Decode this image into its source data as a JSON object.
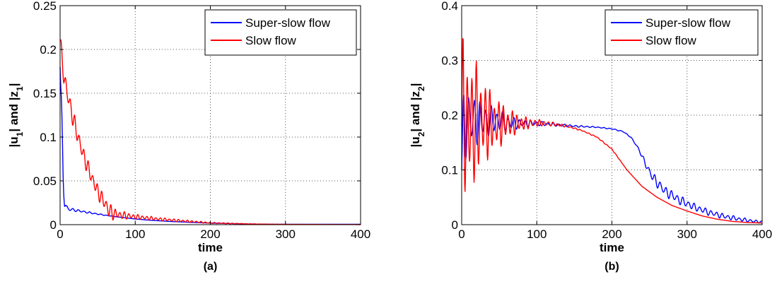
{
  "chart_data": [
    {
      "type": "line",
      "caption": "(a)",
      "xlabel": "time",
      "ylabel_parts": [
        "|u",
        "1",
        "| and |z",
        "1",
        "|"
      ],
      "xlim": [
        0,
        400
      ],
      "ylim": [
        0,
        0.25
      ],
      "xticks": [
        0,
        100,
        200,
        300,
        400
      ],
      "xtick_labels": [
        "0",
        "100",
        "200",
        "300",
        "400"
      ],
      "yticks": [
        0,
        0.05,
        0.1,
        0.15,
        0.2,
        0.25
      ],
      "ytick_labels": [
        "0",
        "0.05",
        "0.1",
        "0.15",
        "0.2",
        "0.25"
      ],
      "grid": true,
      "legend_position": "top-right",
      "series": [
        {
          "name": "Super-slow flow",
          "color": "#0000ff",
          "x": [
            0,
            2,
            4,
            6,
            8,
            10,
            20,
            40,
            60,
            80,
            100,
            120,
            150,
            200,
            250,
            285
          ],
          "y": [
            0.18,
            0.12,
            0.06,
            0.028,
            0.02,
            0.018,
            0.0165,
            0.0135,
            0.0108,
            0.0085,
            0.0065,
            0.005,
            0.0035,
            0.0018,
            0.0008,
            0.0004
          ],
          "osc_amp": [
            0,
            0.02,
            0.02,
            0.008,
            0.004,
            0.003,
            0.0015,
            0.001,
            0.0005,
            0,
            0,
            0,
            0,
            0,
            0,
            0
          ]
        },
        {
          "name": "Slow flow",
          "color": "#ff0000",
          "x": [
            0,
            5,
            10,
            20,
            30,
            40,
            50,
            60,
            66,
            70,
            80,
            100,
            130,
            160,
            200,
            250,
            300,
            400
          ],
          "y": [
            0.21,
            0.17,
            0.148,
            0.112,
            0.082,
            0.058,
            0.038,
            0.024,
            0.015,
            0.013,
            0.011,
            0.009,
            0.0065,
            0.0045,
            0.002,
            0.0008,
            0.0003,
            0.0001
          ],
          "osc_amp": [
            0.01,
            0.012,
            0.012,
            0.011,
            0.01,
            0.009,
            0.009,
            0.009,
            0.01,
            0.008,
            0.005,
            0.003,
            0.002,
            0.0015,
            0.0008,
            0.0003,
            0.0001,
            0
          ]
        }
      ]
    },
    {
      "type": "line",
      "caption": "(b)",
      "xlabel": "time",
      "ylabel_parts": [
        "|u",
        "2",
        "| and |z",
        "2",
        "|"
      ],
      "xlim": [
        0,
        400
      ],
      "ylim": [
        0,
        0.4
      ],
      "xticks": [
        0,
        100,
        200,
        300,
        400
      ],
      "xtick_labels": [
        "0",
        "100",
        "200",
        "300",
        "400"
      ],
      "yticks": [
        0,
        0.1,
        0.2,
        0.3,
        0.4
      ],
      "ytick_labels": [
        "0",
        "0.1",
        "0.2",
        "0.3",
        "0.4"
      ],
      "grid": true,
      "legend_position": "top-right",
      "series": [
        {
          "name": "Super-slow flow",
          "color": "#0000ff",
          "x": [
            0,
            3,
            10,
            20,
            30,
            40,
            50,
            60,
            70,
            80,
            100,
            120,
            150,
            180,
            200,
            215,
            225,
            235,
            245,
            255,
            270,
            290,
            310,
            330,
            350,
            370,
            390,
            400
          ],
          "y": [
            0.1,
            0.19,
            0.19,
            0.19,
            0.19,
            0.19,
            0.19,
            0.185,
            0.185,
            0.185,
            0.185,
            0.183,
            0.18,
            0.178,
            0.175,
            0.17,
            0.16,
            0.14,
            0.11,
            0.085,
            0.062,
            0.045,
            0.032,
            0.022,
            0.015,
            0.01,
            0.006,
            0.005
          ],
          "osc_amp": [
            0.05,
            0.08,
            0.06,
            0.045,
            0.035,
            0.028,
            0.022,
            0.016,
            0.012,
            0.008,
            0.005,
            0.003,
            0.002,
            0.001,
            0.001,
            0.001,
            0.001,
            0.002,
            0.006,
            0.01,
            0.01,
            0.009,
            0.007,
            0.006,
            0.005,
            0.004,
            0.003,
            0.002
          ]
        },
        {
          "name": "Slow flow",
          "color": "#ff0000",
          "x": [
            0,
            2,
            5,
            10,
            20,
            30,
            40,
            50,
            60,
            70,
            80,
            90,
            100,
            120,
            140,
            160,
            180,
            200,
            220,
            240,
            260,
            280,
            300,
            320,
            340,
            360,
            380,
            400
          ],
          "y": [
            0.18,
            0.2,
            0.19,
            0.18,
            0.19,
            0.19,
            0.185,
            0.185,
            0.185,
            0.185,
            0.185,
            0.185,
            0.186,
            0.184,
            0.18,
            0.172,
            0.16,
            0.138,
            0.1,
            0.07,
            0.05,
            0.035,
            0.025,
            0.016,
            0.01,
            0.006,
            0.004,
            0.003
          ],
          "osc_amp": [
            0.1,
            0.16,
            0.15,
            0.13,
            0.11,
            0.08,
            0.06,
            0.045,
            0.032,
            0.022,
            0.015,
            0.01,
            0.007,
            0.004,
            0.002,
            0.001,
            0.001,
            0.001,
            0,
            0,
            0,
            0,
            0,
            0,
            0,
            0,
            0,
            0
          ]
        }
      ]
    }
  ]
}
